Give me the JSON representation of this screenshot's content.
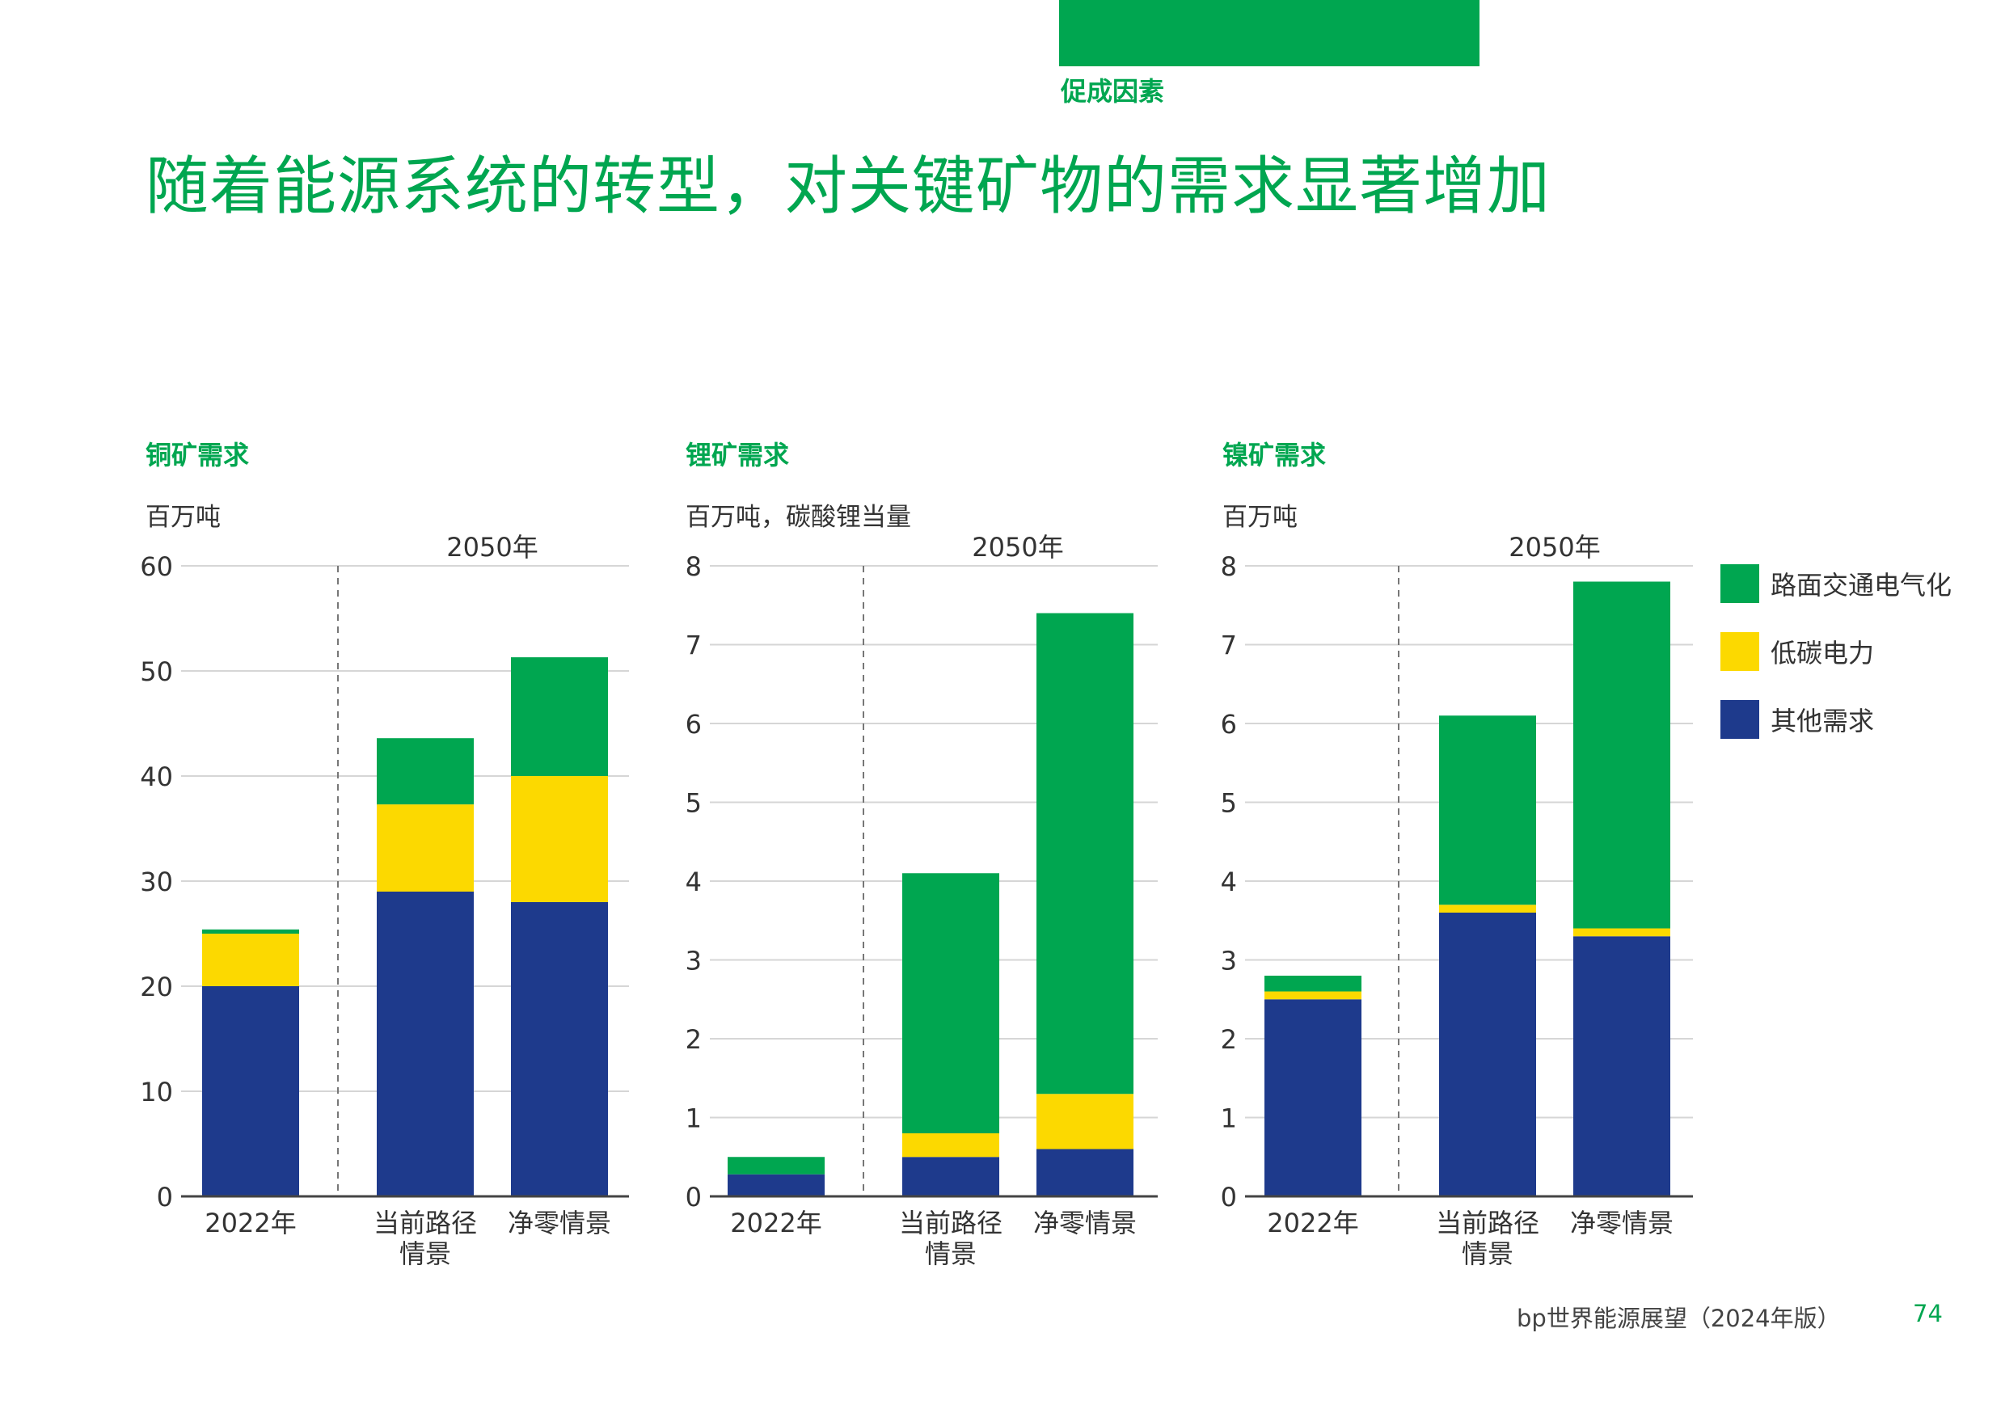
{
  "header": {
    "section_label": "促成因素",
    "title": "随着能源系统的转型，对关键矿物的需求显著增加"
  },
  "colors": {
    "brand_green": "#00a650",
    "road_transport": "#00a650",
    "low_carbon_power": "#fcd900",
    "other_demand": "#1e3a8c"
  },
  "legend": [
    {
      "label": "路面交通电气化",
      "color": "#00a650"
    },
    {
      "label": "低碳电力",
      "color": "#fcd900"
    },
    {
      "label": "其他需求",
      "color": "#1e3a8c"
    }
  ],
  "chart_data": [
    {
      "type": "bar",
      "title": "铜矿需求",
      "unit": "百万吨",
      "group_label": "2050年",
      "categories": [
        "2022年",
        "当前路径\n情景",
        "净零情景"
      ],
      "ylim": [
        0,
        60
      ],
      "yticks": [
        0,
        10,
        20,
        30,
        40,
        50,
        60
      ],
      "series": [
        {
          "name": "其他需求",
          "values": [
            20,
            29,
            28
          ]
        },
        {
          "name": "低碳电力",
          "values": [
            5,
            8.3,
            12
          ]
        },
        {
          "name": "路面交通电气化",
          "values": [
            0.4,
            6.3,
            11.3
          ]
        }
      ]
    },
    {
      "type": "bar",
      "title": "锂矿需求",
      "unit": "百万吨，碳酸锂当量",
      "group_label": "2050年",
      "categories": [
        "2022年",
        "当前路径\n情景",
        "净零情景"
      ],
      "ylim": [
        0,
        8
      ],
      "yticks": [
        0,
        1,
        2,
        3,
        4,
        5,
        6,
        7,
        8
      ],
      "series": [
        {
          "name": "其他需求",
          "values": [
            0.28,
            0.5,
            0.6
          ]
        },
        {
          "name": "低碳电力",
          "values": [
            0,
            0.3,
            0.7
          ]
        },
        {
          "name": "路面交通电气化",
          "values": [
            0.22,
            3.3,
            6.1
          ]
        }
      ]
    },
    {
      "type": "bar",
      "title": "镍矿需求",
      "unit": "百万吨",
      "group_label": "2050年",
      "categories": [
        "2022年",
        "当前路径\n情景",
        "净零情景"
      ],
      "ylim": [
        0,
        8
      ],
      "yticks": [
        0,
        1,
        2,
        3,
        4,
        5,
        6,
        7,
        8
      ],
      "series": [
        {
          "name": "其他需求",
          "values": [
            2.5,
            3.6,
            3.3
          ]
        },
        {
          "name": "低碳电力",
          "values": [
            0.1,
            0.1,
            0.1
          ]
        },
        {
          "name": "路面交通电气化",
          "values": [
            0.2,
            2.4,
            4.4
          ]
        }
      ]
    }
  ],
  "footer": {
    "publication": "bp世界能源展望（2024年版）",
    "page_number": "74"
  }
}
